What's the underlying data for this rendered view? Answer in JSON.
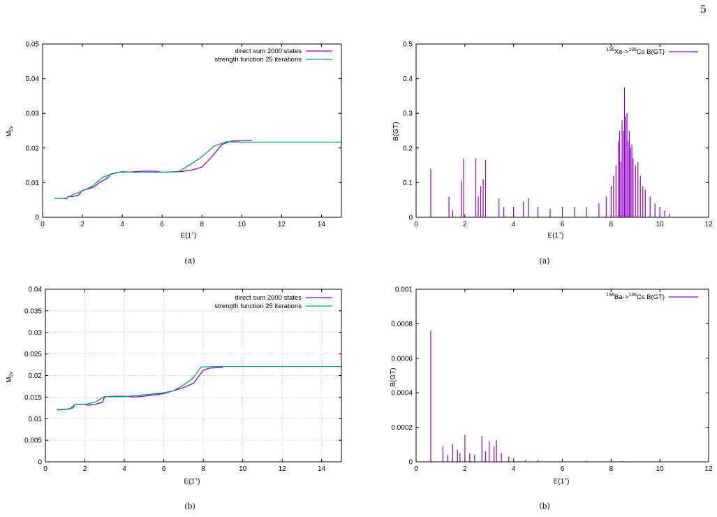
{
  "page_number": "5",
  "colors": {
    "purple": "#9400d3",
    "green": "#009e73",
    "grid": "#bdbdbd",
    "axis": "#000000"
  },
  "captions": {
    "a_left": "(a)",
    "a_right": "(a)",
    "b_left": "(b)",
    "b_right": "(b)"
  },
  "chart_data": [
    {
      "id": "chartA",
      "type": "line",
      "xlabel": "E(1+)",
      "ylabel": "M2v",
      "xlim": [
        0,
        15
      ],
      "ylim": [
        0,
        0.05
      ],
      "grid": false,
      "legend_position": "top-right",
      "x_ticks": [
        0,
        2,
        4,
        6,
        8,
        10,
        12,
        14
      ],
      "y_ticks": [
        0,
        0.01,
        0.02,
        0.03,
        0.04,
        0.05
      ],
      "x_tick_labels": [
        "0",
        "2",
        "4",
        "6",
        "8",
        "10",
        "12",
        "14"
      ],
      "y_tick_labels": [
        "0",
        "0.01",
        "0.02",
        "0.03",
        "0.04",
        "0.05"
      ],
      "series": [
        {
          "name": "direct sum 2000 states",
          "color": "#9400d3",
          "points": [
            [
              0.6,
              0.0055
            ],
            [
              1.0,
              0.0055
            ],
            [
              1.2,
              0.0053
            ],
            [
              1.3,
              0.006
            ],
            [
              1.5,
              0.0059
            ],
            [
              1.8,
              0.0064
            ],
            [
              2.0,
              0.0078
            ],
            [
              2.3,
              0.0082
            ],
            [
              2.6,
              0.0088
            ],
            [
              2.8,
              0.0098
            ],
            [
              3.0,
              0.0105
            ],
            [
              3.3,
              0.0115
            ],
            [
              3.4,
              0.0124
            ],
            [
              3.8,
              0.013
            ],
            [
              4.5,
              0.0131
            ],
            [
              5.0,
              0.0133
            ],
            [
              5.6,
              0.0133
            ],
            [
              6.0,
              0.013
            ],
            [
              7.0,
              0.0132
            ],
            [
              7.5,
              0.0136
            ],
            [
              8.0,
              0.0145
            ],
            [
              8.5,
              0.0175
            ],
            [
              9.0,
              0.021
            ],
            [
              9.5,
              0.022
            ],
            [
              10.0,
              0.0221
            ],
            [
              10.5,
              0.0221
            ]
          ]
        },
        {
          "name": "strength function 25 iterations",
          "color": "#009e73",
          "points": [
            [
              0.6,
              0.0055
            ],
            [
              1.2,
              0.0055
            ],
            [
              1.5,
              0.0065
            ],
            [
              2.0,
              0.0076
            ],
            [
              2.5,
              0.009
            ],
            [
              3.0,
              0.0115
            ],
            [
              3.5,
              0.0125
            ],
            [
              4.0,
              0.0132
            ],
            [
              4.5,
              0.013
            ],
            [
              6.0,
              0.013
            ],
            [
              6.8,
              0.0131
            ],
            [
              7.5,
              0.0155
            ],
            [
              8.0,
              0.0175
            ],
            [
              8.6,
              0.0205
            ],
            [
              9.2,
              0.0218
            ],
            [
              10.0,
              0.0217
            ],
            [
              15.0,
              0.0217
            ]
          ]
        }
      ]
    },
    {
      "id": "chartB",
      "type": "line",
      "xlabel": "E(1+)",
      "ylabel": "M2v",
      "xlim": [
        0,
        15
      ],
      "ylim": [
        0,
        0.04
      ],
      "grid": true,
      "legend_position": "top-right",
      "x_ticks": [
        0,
        2,
        4,
        6,
        8,
        10,
        12,
        14
      ],
      "y_ticks": [
        0,
        0.005,
        0.01,
        0.015,
        0.02,
        0.025,
        0.03,
        0.035,
        0.04
      ],
      "x_tick_labels": [
        "0",
        "2",
        "4",
        "6",
        "8",
        "10",
        "12",
        "14"
      ],
      "y_tick_labels": [
        "0",
        "0.005",
        "0.01",
        "0.015",
        "0.02",
        "0.025",
        "0.03",
        "0.035",
        "0.04"
      ],
      "series": [
        {
          "name": "direct sum 2000 states",
          "color": "#9400d3",
          "points": [
            [
              0.6,
              0.0121
            ],
            [
              1.1,
              0.0122
            ],
            [
              1.4,
              0.0125
            ],
            [
              1.5,
              0.0133
            ],
            [
              2.0,
              0.0133
            ],
            [
              2.2,
              0.0131
            ],
            [
              2.5,
              0.0133
            ],
            [
              2.9,
              0.0138
            ],
            [
              3.0,
              0.0151
            ],
            [
              3.5,
              0.0152
            ],
            [
              4.0,
              0.0152
            ],
            [
              4.5,
              0.015
            ],
            [
              5.0,
              0.0152
            ],
            [
              5.5,
              0.0155
            ],
            [
              6.0,
              0.0158
            ],
            [
              6.5,
              0.0165
            ],
            [
              7.0,
              0.0172
            ],
            [
              7.5,
              0.0182
            ],
            [
              7.8,
              0.02
            ],
            [
              8.0,
              0.0212
            ],
            [
              8.3,
              0.0217
            ],
            [
              9.0,
              0.0219
            ]
          ]
        },
        {
          "name": "strength function 25 iterations",
          "color": "#009e73",
          "points": [
            [
              0.6,
              0.012
            ],
            [
              1.2,
              0.0122
            ],
            [
              1.5,
              0.0133
            ],
            [
              2.0,
              0.0133
            ],
            [
              2.5,
              0.0138
            ],
            [
              3.0,
              0.0151
            ],
            [
              4.0,
              0.0151
            ],
            [
              5.0,
              0.0155
            ],
            [
              6.0,
              0.016
            ],
            [
              6.5,
              0.0165
            ],
            [
              7.0,
              0.0178
            ],
            [
              7.5,
              0.0195
            ],
            [
              7.9,
              0.022
            ],
            [
              9.0,
              0.0221
            ],
            [
              15.0,
              0.0221
            ]
          ]
        }
      ]
    },
    {
      "id": "chartC",
      "type": "bar",
      "xlabel": "E(1+)",
      "ylabel": "B(GT)",
      "xlim": [
        0,
        12
      ],
      "ylim": [
        0,
        0.5
      ],
      "grid": false,
      "legend_position": "top-right",
      "x_ticks": [
        0,
        2,
        4,
        6,
        8,
        10,
        12
      ],
      "y_ticks": [
        0,
        0.1,
        0.2,
        0.3,
        0.4,
        0.5
      ],
      "x_tick_labels": [
        "0",
        "2",
        "4",
        "6",
        "8",
        "10",
        "12"
      ],
      "y_tick_labels": [
        "0",
        "0.1",
        "0.2",
        "0.3",
        "0.4",
        "0.5"
      ],
      "series": [
        {
          "name": "136Xe->136Cs B(GT)",
          "color": "#9400d3",
          "spikes": [
            [
              0.6,
              0.14
            ],
            [
              1.35,
              0.06
            ],
            [
              1.5,
              0.02
            ],
            [
              1.85,
              0.105
            ],
            [
              1.95,
              0.17
            ],
            [
              2.45,
              0.17
            ],
            [
              2.55,
              0.06
            ],
            [
              2.65,
              0.09
            ],
            [
              2.75,
              0.11
            ],
            [
              2.85,
              0.165
            ],
            [
              3.4,
              0.055
            ],
            [
              3.6,
              0.03
            ],
            [
              4.0,
              0.03
            ],
            [
              4.4,
              0.045
            ],
            [
              4.6,
              0.055
            ],
            [
              5.0,
              0.03
            ],
            [
              5.5,
              0.025
            ],
            [
              6.0,
              0.03
            ],
            [
              6.5,
              0.03
            ],
            [
              7.0,
              0.03
            ],
            [
              7.5,
              0.04
            ],
            [
              7.8,
              0.06
            ],
            [
              8.0,
              0.09
            ],
            [
              8.1,
              0.12
            ],
            [
              8.2,
              0.15
            ],
            [
              8.3,
              0.22
            ],
            [
              8.35,
              0.25
            ],
            [
              8.4,
              0.16
            ],
            [
              8.45,
              0.28
            ],
            [
              8.5,
              0.25
            ],
            [
              8.55,
              0.375
            ],
            [
              8.6,
              0.29
            ],
            [
              8.65,
              0.3
            ],
            [
              8.7,
              0.22
            ],
            [
              8.75,
              0.25
            ],
            [
              8.8,
              0.2
            ],
            [
              8.85,
              0.21
            ],
            [
              8.9,
              0.17
            ],
            [
              9.0,
              0.15
            ],
            [
              9.1,
              0.16
            ],
            [
              9.2,
              0.12
            ],
            [
              9.3,
              0.09
            ],
            [
              9.4,
              0.08
            ],
            [
              9.6,
              0.06
            ],
            [
              9.8,
              0.04
            ],
            [
              10.0,
              0.03
            ],
            [
              10.2,
              0.02
            ],
            [
              10.4,
              0.01
            ]
          ]
        }
      ]
    },
    {
      "id": "chartD",
      "type": "bar",
      "xlabel": "E(1+)",
      "ylabel": "B(GT)",
      "xlim": [
        0,
        12
      ],
      "ylim": [
        0,
        0.001
      ],
      "grid": false,
      "legend_position": "top-right",
      "x_ticks": [
        0,
        2,
        4,
        6,
        8,
        10,
        12
      ],
      "y_ticks": [
        0,
        0.0002,
        0.0004,
        0.0006,
        0.0008,
        0.001
      ],
      "x_tick_labels": [
        "0",
        "2",
        "4",
        "6",
        "8",
        "10",
        "12"
      ],
      "y_tick_labels": [
        "0",
        "0.0002",
        "0.0004",
        "0.0006",
        "0.0008",
        "0.001"
      ],
      "series": [
        {
          "name": "136Ba->136Cs B(GT)",
          "color": "#9400d3",
          "spikes": [
            [
              0.6,
              0.00076
            ],
            [
              1.1,
              9e-05
            ],
            [
              1.3,
              4e-05
            ],
            [
              1.5,
              0.000105
            ],
            [
              1.7,
              7e-05
            ],
            [
              1.8,
              5e-05
            ],
            [
              2.0,
              0.000155
            ],
            [
              2.2,
              5e-05
            ],
            [
              2.4,
              4e-05
            ],
            [
              2.7,
              0.00015
            ],
            [
              2.85,
              6e-05
            ],
            [
              3.0,
              0.00012
            ],
            [
              3.2,
              9e-05
            ],
            [
              3.3,
              0.000125
            ],
            [
              3.5,
              5e-05
            ],
            [
              3.8,
              3e-05
            ],
            [
              4.0,
              2e-05
            ],
            [
              4.5,
              1e-05
            ],
            [
              5.0,
              1e-05
            ],
            [
              6.0,
              8e-06
            ],
            [
              7.0,
              6e-06
            ],
            [
              8.0,
              5e-06
            ],
            [
              8.5,
              4e-06
            ]
          ]
        }
      ]
    }
  ]
}
